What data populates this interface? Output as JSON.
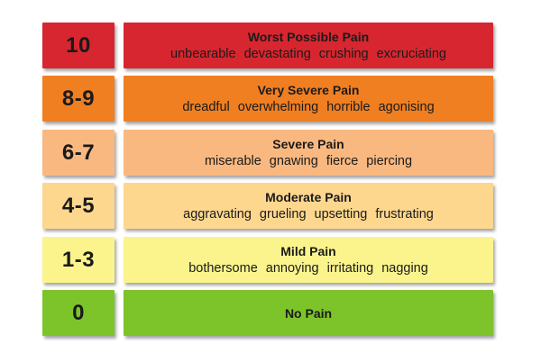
{
  "levels": [
    {
      "score": "10",
      "title": "Worst Possible Pain",
      "descriptors": [
        "unbearable",
        "devastating",
        "crushing",
        "excruciating"
      ],
      "color": "#d7262f"
    },
    {
      "score": "8-9",
      "title": "Very Severe Pain",
      "descriptors": [
        "dreadful",
        "overwhelming",
        "horrible",
        "agonising"
      ],
      "color": "#f07f22"
    },
    {
      "score": "6-7",
      "title": "Severe Pain",
      "descriptors": [
        "miserable",
        "gnawing",
        "fierce",
        "piercing"
      ],
      "color": "#f9b880"
    },
    {
      "score": "4-5",
      "title": "Moderate Pain",
      "descriptors": [
        "aggravating",
        "grueling",
        "upsetting",
        "frustrating"
      ],
      "color": "#fed78e"
    },
    {
      "score": "1-3",
      "title": "Mild Pain",
      "descriptors": [
        "bothersome",
        "annoying",
        "irritating",
        "nagging"
      ],
      "color": "#fbf48c"
    },
    {
      "score": "0",
      "title": "No Pain",
      "descriptors": [],
      "color": "#7dc32a"
    }
  ]
}
